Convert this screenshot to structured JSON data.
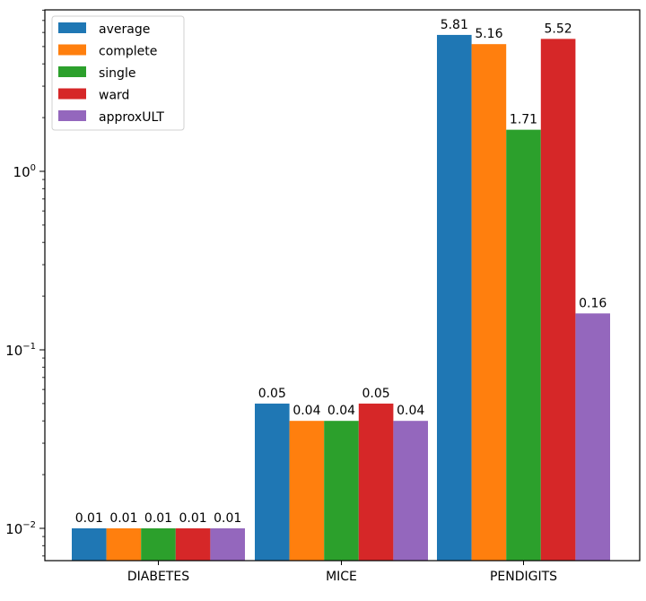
{
  "chart_data": {
    "type": "bar",
    "title": "",
    "xlabel": "",
    "ylabel": "",
    "yscale": "log",
    "ylim": [
      0.0066,
      8.0
    ],
    "categories": [
      "DIABETES",
      "MICE",
      "PENDIGITS"
    ],
    "series": [
      {
        "name": "average",
        "color": "#1f77b4",
        "values": [
          0.01,
          0.05,
          5.81
        ],
        "labels": [
          "0.01",
          "0.05",
          "5.81"
        ]
      },
      {
        "name": "complete",
        "color": "#ff7f0e",
        "values": [
          0.01,
          0.04,
          5.16
        ],
        "labels": [
          "0.01",
          "0.04",
          "5.16"
        ]
      },
      {
        "name": "single",
        "color": "#2ca02c",
        "values": [
          0.01,
          0.04,
          1.71
        ],
        "labels": [
          "0.01",
          "0.04",
          "1.71"
        ]
      },
      {
        "name": "ward",
        "color": "#d62728",
        "values": [
          0.01,
          0.05,
          5.52
        ],
        "labels": [
          "0.01",
          "0.05",
          "5.52"
        ]
      },
      {
        "name": "approxULT",
        "color": "#9467bd",
        "values": [
          0.01,
          0.04,
          0.16
        ],
        "labels": [
          "0.01",
          "0.04",
          "0.16"
        ]
      }
    ],
    "yticks": [
      {
        "base": "10",
        "exp": "−2",
        "value": 0.01
      },
      {
        "base": "10",
        "exp": "−1",
        "value": 0.1
      },
      {
        "base": "10",
        "exp": "0",
        "value": 1
      }
    ],
    "grid": false,
    "legend_position": "top-left"
  }
}
